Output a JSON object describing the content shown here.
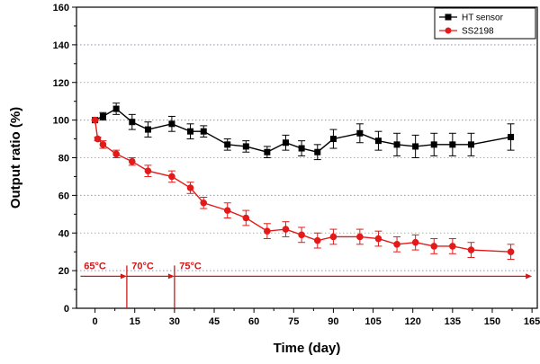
{
  "chart_data": {
    "type": "line",
    "xlabel": "Time (day)",
    "ylabel": "Output ratio (%)",
    "xlim": [
      -7,
      167
    ],
    "ylim": [
      0,
      160
    ],
    "xticks": [
      0,
      15,
      30,
      45,
      60,
      75,
      90,
      105,
      120,
      135,
      150,
      165
    ],
    "yticks": [
      0,
      20,
      40,
      60,
      80,
      100,
      120,
      140,
      160
    ],
    "grid": true,
    "legend_position": "top-right",
    "series": [
      {
        "name": "HT sensor",
        "color": "#000000",
        "marker": "square",
        "x": [
          0,
          3,
          8,
          14,
          20,
          29,
          36,
          41,
          50,
          57,
          65,
          72,
          78,
          84,
          90,
          100,
          107,
          114,
          121,
          128,
          135,
          142,
          157
        ],
        "y": [
          100,
          102,
          106,
          99,
          95,
          98,
          94,
          94,
          87,
          86,
          83,
          88,
          85,
          83,
          90,
          93,
          89,
          87,
          86,
          87,
          87,
          87,
          91
        ],
        "err": [
          0,
          2,
          3,
          4,
          4,
          4,
          4,
          3,
          3,
          3,
          3,
          4,
          4,
          4,
          5,
          5,
          5,
          6,
          6,
          6,
          6,
          6,
          7
        ]
      },
      {
        "name": "SS2198",
        "color": "#e41a1a",
        "marker": "circle",
        "x": [
          0,
          1,
          3,
          8,
          14,
          20,
          29,
          36,
          41,
          50,
          57,
          65,
          72,
          78,
          84,
          90,
          100,
          107,
          114,
          121,
          128,
          135,
          142,
          157
        ],
        "y": [
          100,
          90,
          87,
          82,
          78,
          73,
          70,
          64,
          56,
          52,
          48,
          41,
          42,
          39,
          36,
          38,
          38,
          37,
          34,
          35,
          33,
          33,
          31,
          30
        ],
        "err": [
          0,
          1,
          2,
          2,
          2,
          3,
          3,
          3,
          3,
          4,
          4,
          4,
          4,
          4,
          4,
          4,
          4,
          4,
          4,
          4,
          4,
          4,
          4,
          4
        ]
      }
    ],
    "annotations": {
      "labels": [
        {
          "text": "65°C",
          "x": 0
        },
        {
          "text": "70°C",
          "x": 18
        },
        {
          "text": "75°C",
          "x": 36
        }
      ],
      "arrow_y": 17,
      "boundaries": [
        12,
        30
      ],
      "arrow_end": 165
    }
  }
}
